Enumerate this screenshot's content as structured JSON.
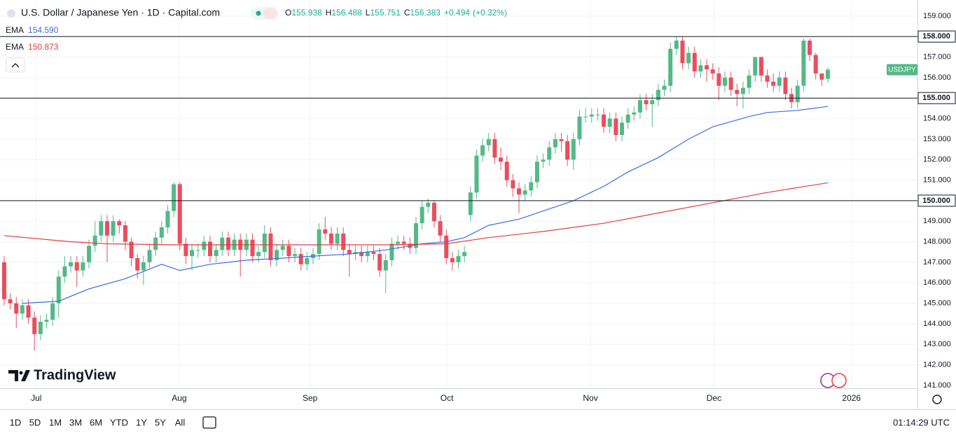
{
  "chart_data": {
    "type": "candlestick",
    "header": {
      "title": "U.S. Dollar / Japanese Yen · 1D · Capital.com",
      "ohlc_labels": [
        "O",
        "H",
        "L",
        "C"
      ],
      "change": "+0.494",
      "change_pct": "(+0.32%)"
    },
    "up_color": "#53b987",
    "down_color": "#eb4d5c",
    "open": [
      147.0,
      145.2,
      145.0,
      144.5,
      144.9,
      144.3,
      143.5,
      144.1,
      144.2,
      145.0,
      146.3,
      146.8,
      147.0,
      146.6,
      147.0,
      147.8,
      148.3,
      149.0,
      148.3,
      149.0,
      148.8,
      148.0,
      147.2,
      146.6,
      147.0,
      147.6,
      148.2,
      148.7,
      149.5,
      150.8,
      147.9,
      147.3,
      147.6,
      147.6,
      148.0,
      147.3,
      147.6,
      148.2,
      147.6,
      148.1,
      147.6,
      148.1,
      147.3,
      147.5,
      148.4,
      147.1,
      147.6,
      147.8,
      147.3,
      147.4,
      146.9,
      147.2,
      147.4,
      148.6,
      148.4,
      147.9,
      148.4,
      147.6,
      147.4,
      147.5,
      147.3,
      147.5,
      147.4,
      146.6,
      147.1,
      147.9,
      148.0,
      147.9,
      147.7,
      148.9,
      149.7,
      149.9,
      149.0,
      148.3,
      147.2,
      147.0,
      147.3,
      149.3,
      150.4,
      152.2,
      152.7,
      153.0,
      152.1,
      151.9,
      151.0,
      150.6,
      150.3,
      150.5,
      150.9,
      151.9,
      152.0,
      152.6,
      153.0,
      152.9,
      152.0,
      153.0,
      154.1,
      154.1,
      154.2,
      154.2,
      153.6,
      154.0,
      153.2,
      153.8,
      154.2,
      154.3,
      154.9,
      154.7,
      154.9,
      155.4,
      155.6,
      157.4,
      157.8,
      156.7,
      157.2,
      156.3,
      156.6,
      156.4,
      156.2,
      155.6,
      156.0,
      155.4,
      155.2,
      155.5,
      156.1,
      157.0,
      156.1,
      155.8,
      155.6,
      156.0,
      155.2,
      154.8,
      155.6,
      157.8,
      157.1,
      156.2,
      155.938
    ],
    "high": [
      147.3,
      145.5,
      145.3,
      145.2,
      145.2,
      144.6,
      144.4,
      144.5,
      145.3,
      146.6,
      147.3,
      147.3,
      147.3,
      147.3,
      148.1,
      149.0,
      149.3,
      149.3,
      149.3,
      149.1,
      149.0,
      148.2,
      147.4,
      147.3,
      147.9,
      148.5,
      149.0,
      149.8,
      150.9,
      150.9,
      148.2,
      147.9,
      147.9,
      148.3,
      148.3,
      147.9,
      148.5,
      148.5,
      148.4,
      148.4,
      148.4,
      148.4,
      147.8,
      148.8,
      148.7,
      147.9,
      148.1,
      148.1,
      147.7,
      147.7,
      147.5,
      147.7,
      148.9,
      149.2,
      148.7,
      148.7,
      148.7,
      147.9,
      147.8,
      147.8,
      147.8,
      147.8,
      147.7,
      147.4,
      148.2,
      148.3,
      148.3,
      148.2,
      149.2,
      150.0,
      150.1,
      150.0,
      149.3,
      148.6,
      147.5,
      147.6,
      147.8,
      150.7,
      152.5,
      153.0,
      153.3,
      153.3,
      152.6,
      152.2,
      151.3,
      150.9,
      150.8,
      151.2,
      152.2,
      152.3,
      152.9,
      153.3,
      153.3,
      153.2,
      153.3,
      154.4,
      154.5,
      154.5,
      154.5,
      154.5,
      154.3,
      154.3,
      154.1,
      154.5,
      154.6,
      155.2,
      155.2,
      155.2,
      155.7,
      155.9,
      157.7,
      158.0,
      158.0,
      157.5,
      157.5,
      156.9,
      156.9,
      156.7,
      156.5,
      156.3,
      156.3,
      155.7,
      155.8,
      156.4,
      157.0,
      157.0,
      156.4,
      156.2,
      156.3,
      156.3,
      155.5,
      155.9,
      157.9,
      157.9,
      157.2,
      156.2,
      156.488
    ],
    "low": [
      144.9,
      144.7,
      143.8,
      144.2,
      144.0,
      142.7,
      143.2,
      143.8,
      143.9,
      144.3,
      146.0,
      146.5,
      145.8,
      146.3,
      146.7,
      147.5,
      148.0,
      147.0,
      148.0,
      148.4,
      147.6,
      146.8,
      146.2,
      145.9,
      146.7,
      147.3,
      147.9,
      148.4,
      149.2,
      147.6,
      146.9,
      146.6,
      147.2,
      147.3,
      147.0,
      147.0,
      147.3,
      147.3,
      147.3,
      146.3,
      147.3,
      147.0,
      147.0,
      147.2,
      146.8,
      146.8,
      147.3,
      147.0,
      147.0,
      146.6,
      146.6,
      146.9,
      147.1,
      148.1,
      147.6,
      147.6,
      147.3,
      146.3,
      147.1,
      147.0,
      147.0,
      147.1,
      146.3,
      145.5,
      146.8,
      147.6,
      147.6,
      147.4,
      147.4,
      148.6,
      149.4,
      148.7,
      148.0,
      146.9,
      146.6,
      146.7,
      147.0,
      149.0,
      150.1,
      151.9,
      152.4,
      151.8,
      151.5,
      150.7,
      150.2,
      149.4,
      150.0,
      150.2,
      150.6,
      151.6,
      151.7,
      152.3,
      152.4,
      151.7,
      151.5,
      152.7,
      153.8,
      153.8,
      153.9,
      153.3,
      153.3,
      152.9,
      152.9,
      153.5,
      153.9,
      154.0,
      154.4,
      153.6,
      154.6,
      155.1,
      155.3,
      157.1,
      156.4,
      156.4,
      156.0,
      156.0,
      155.8,
      155.9,
      154.9,
      155.3,
      155.1,
      154.6,
      154.5,
      155.2,
      155.8,
      155.8,
      155.5,
      155.3,
      155.3,
      154.9,
      154.5,
      154.5,
      155.3,
      156.8,
      155.9,
      155.6,
      155.751
    ],
    "close": [
      145.2,
      145.0,
      144.5,
      144.9,
      144.3,
      143.5,
      144.1,
      144.2,
      145.0,
      146.3,
      146.8,
      147.0,
      146.6,
      147.0,
      147.8,
      148.3,
      149.0,
      148.3,
      149.0,
      148.8,
      148.0,
      147.2,
      146.6,
      147.0,
      147.6,
      148.2,
      148.7,
      149.5,
      150.8,
      147.9,
      147.3,
      147.6,
      147.6,
      148.0,
      147.3,
      147.6,
      148.2,
      147.6,
      148.1,
      147.6,
      148.1,
      147.3,
      147.5,
      148.4,
      147.1,
      147.6,
      147.8,
      147.3,
      147.4,
      146.9,
      147.2,
      147.4,
      148.6,
      148.4,
      147.9,
      148.4,
      147.6,
      147.4,
      147.5,
      147.3,
      147.5,
      147.4,
      146.6,
      147.1,
      147.9,
      148.0,
      147.9,
      147.7,
      148.9,
      149.7,
      149.9,
      149.0,
      148.3,
      147.2,
      147.0,
      147.3,
      147.5,
      150.4,
      152.2,
      152.7,
      153.0,
      152.1,
      151.9,
      151.0,
      150.6,
      150.3,
      150.5,
      150.9,
      151.9,
      152.0,
      152.6,
      153.0,
      152.9,
      152.0,
      153.0,
      154.1,
      154.1,
      154.2,
      154.2,
      153.6,
      154.0,
      153.2,
      153.8,
      154.2,
      154.3,
      154.9,
      154.7,
      154.9,
      155.4,
      155.6,
      157.4,
      157.8,
      156.7,
      157.2,
      156.3,
      156.6,
      156.4,
      156.2,
      155.6,
      156.0,
      155.4,
      155.2,
      155.5,
      156.1,
      157.0,
      156.1,
      155.8,
      155.6,
      156.0,
      155.2,
      154.8,
      155.6,
      157.8,
      157.1,
      156.2,
      155.9,
      156.383
    ],
    "overlays": [
      {
        "name": "EMA",
        "color": "#3b6fe0",
        "last_label": "154.590",
        "x": [
          3,
          9,
          14,
          20,
          26,
          29,
          34,
          40,
          46,
          51,
          57,
          63,
          69,
          73,
          76,
          80,
          85,
          89,
          94,
          99,
          103,
          108,
          113,
          117,
          123,
          126,
          131,
          136
        ],
        "values": [
          145.0,
          145.1,
          145.7,
          146.2,
          146.9,
          146.6,
          146.9,
          147.1,
          147.2,
          147.3,
          147.4,
          147.6,
          147.9,
          148.0,
          148.2,
          148.8,
          149.1,
          149.5,
          150.0,
          150.7,
          151.4,
          152.1,
          153.0,
          153.6,
          154.1,
          154.3,
          154.4,
          154.59
        ]
      },
      {
        "name": "EMA",
        "color": "#e53b3b",
        "last_label": "150.873",
        "x": [
          0,
          11,
          17,
          29,
          46,
          63,
          73,
          80,
          89,
          99,
          108,
          117,
          126,
          136
        ],
        "values": [
          148.3,
          148.0,
          147.9,
          147.85,
          147.85,
          147.85,
          147.9,
          148.2,
          148.5,
          148.9,
          149.4,
          149.9,
          150.4,
          150.873
        ]
      }
    ],
    "hlines": [
      {
        "value": 158,
        "label": "158.000"
      },
      {
        "value": 155,
        "label": "155.000"
      },
      {
        "value": 150,
        "label": "150.000"
      }
    ],
    "symbol_badge": "USDJPY",
    "ylim": [
      140.86,
      159.78
    ],
    "yticks": [
      {
        "value": 141,
        "label": "141.000"
      },
      {
        "value": 142,
        "label": "142.000"
      },
      {
        "value": 143,
        "label": "143.000"
      },
      {
        "value": 144,
        "label": "144.000"
      },
      {
        "value": 145,
        "label": "145.000"
      },
      {
        "value": 146,
        "label": "146.000"
      },
      {
        "value": 147,
        "label": "147.000"
      },
      {
        "value": 148,
        "label": "148.000"
      },
      {
        "value": 149,
        "label": "149.000"
      },
      {
        "value": 150,
        "label": "150.000"
      },
      {
        "value": 151,
        "label": "151.000"
      },
      {
        "value": 152,
        "label": "152.000"
      },
      {
        "value": 153,
        "label": "153.000"
      },
      {
        "value": 154,
        "label": "154.000"
      },
      {
        "value": 155,
        "label": "155.000"
      },
      {
        "value": 156,
        "label": "156.000"
      },
      {
        "value": 157,
        "label": "157.000"
      },
      {
        "value": 158,
        "label": "158.000"
      },
      {
        "value": 159,
        "label": "159.000"
      }
    ],
    "xlim": [
      -0.69,
      150.8
    ],
    "xticks": [
      {
        "value": 5.3,
        "label": "Jul"
      },
      {
        "value": 28.9,
        "label": "Aug"
      },
      {
        "value": 50.5,
        "label": "Sep"
      },
      {
        "value": 73.1,
        "label": "Oct"
      },
      {
        "value": 96.8,
        "label": "Nov"
      },
      {
        "value": 117.2,
        "label": "Dec"
      },
      {
        "value": 139.9,
        "label": "2026"
      }
    ],
    "grid": true
  },
  "logo": "TradingView",
  "toolbar": {
    "ranges": [
      "1D",
      "5D",
      "1M",
      "3M",
      "6M",
      "YTD",
      "1Y",
      "5Y",
      "All"
    ],
    "time": "01:14:29 UTC"
  }
}
